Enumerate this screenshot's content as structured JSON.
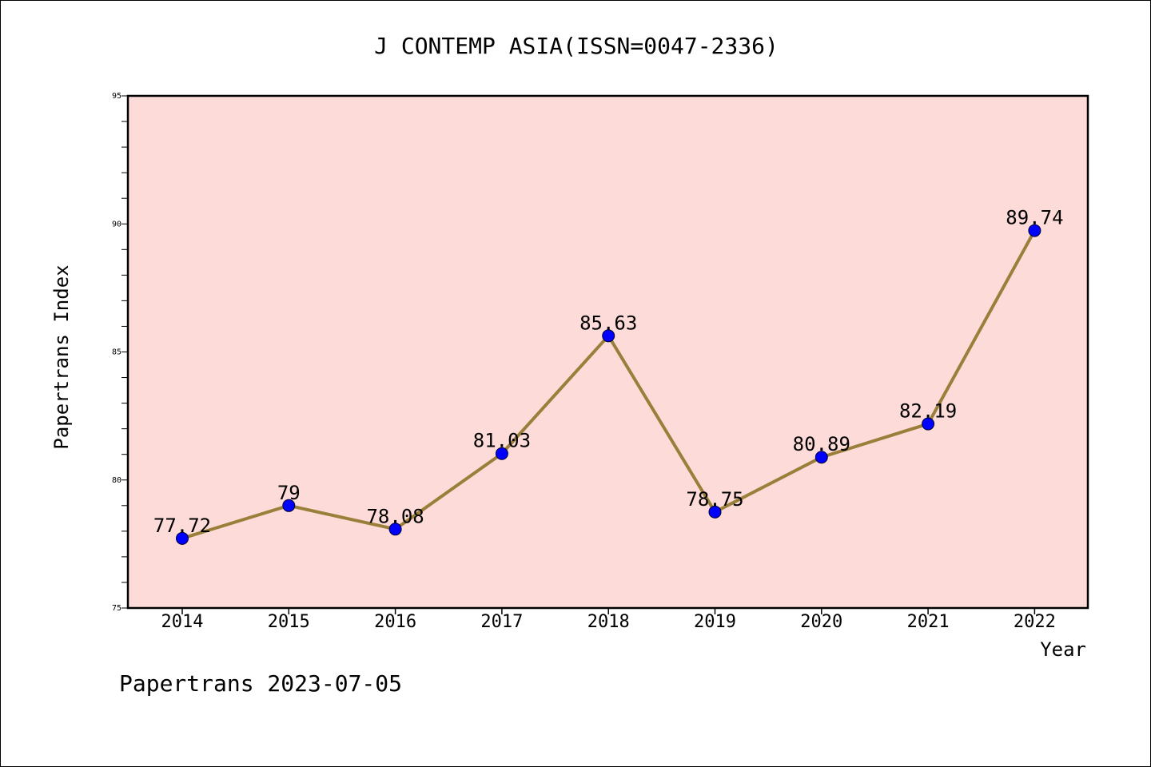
{
  "chart_data": {
    "type": "line",
    "title": "J CONTEMP ASIA(ISSN=0047-2336)",
    "xlabel": "Year",
    "ylabel": "Papertrans Index",
    "categories": [
      "2014",
      "2015",
      "2016",
      "2017",
      "2018",
      "2019",
      "2020",
      "2021",
      "2022"
    ],
    "values": [
      77.72,
      79,
      78.08,
      81.03,
      85.63,
      78.75,
      80.89,
      82.19,
      89.74
    ],
    "data_labels": [
      "77.72",
      "79",
      "78.08",
      "81.03",
      "85.63",
      "78.75",
      "80.89",
      "82.19",
      "89.74"
    ],
    "ylim": [
      75,
      95
    ],
    "yticks": [
      "75",
      "80",
      "85",
      "90",
      "95"
    ],
    "grid": false,
    "colors": {
      "plot_background": "#fddbd8",
      "line": "#9a7f3a",
      "marker": "#0000ff"
    }
  },
  "footer": "Papertrans 2023-07-05"
}
